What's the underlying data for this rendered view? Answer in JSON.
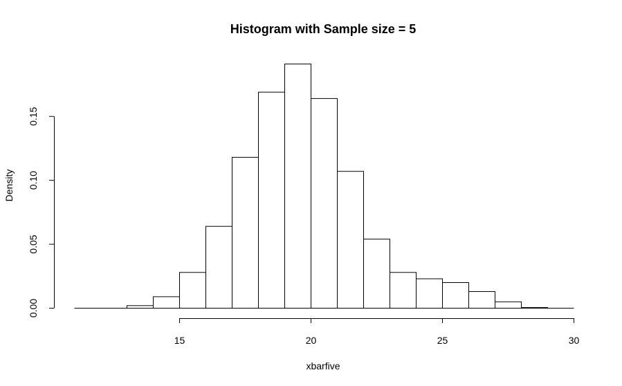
{
  "chart_data": {
    "type": "bar",
    "title": "Histogram with Sample size = 5",
    "xlabel": "xbarfive",
    "ylabel": "Density",
    "bins": [
      {
        "x0": 11,
        "x1": 12,
        "value": 0.0
      },
      {
        "x0": 12,
        "x1": 13,
        "value": 0.0
      },
      {
        "x0": 13,
        "x1": 14,
        "value": 0.002
      },
      {
        "x0": 14,
        "x1": 15,
        "value": 0.009
      },
      {
        "x0": 15,
        "x1": 16,
        "value": 0.028
      },
      {
        "x0": 16,
        "x1": 17,
        "value": 0.064
      },
      {
        "x0": 17,
        "x1": 18,
        "value": 0.118
      },
      {
        "x0": 18,
        "x1": 19,
        "value": 0.169
      },
      {
        "x0": 19,
        "x1": 20,
        "value": 0.191
      },
      {
        "x0": 20,
        "x1": 21,
        "value": 0.164
      },
      {
        "x0": 21,
        "x1": 22,
        "value": 0.107
      },
      {
        "x0": 22,
        "x1": 23,
        "value": 0.054
      },
      {
        "x0": 23,
        "x1": 24,
        "value": 0.028
      },
      {
        "x0": 24,
        "x1": 25,
        "value": 0.023
      },
      {
        "x0": 25,
        "x1": 26,
        "value": 0.02
      },
      {
        "x0": 26,
        "x1": 27,
        "value": 0.013
      },
      {
        "x0": 27,
        "x1": 28,
        "value": 0.005
      },
      {
        "x0": 28,
        "x1": 29,
        "value": 0.0005
      },
      {
        "x0": 29,
        "x1": 30,
        "value": 0.0
      }
    ],
    "xlim": [
      11,
      30
    ],
    "ylim": [
      0,
      0.191
    ],
    "x_ticks": [
      15,
      20,
      25,
      30
    ],
    "x_tick_labels": [
      "15",
      "20",
      "25",
      "30"
    ],
    "y_ticks": [
      0,
      0.05,
      0.1,
      0.15
    ],
    "y_tick_labels": [
      "0.00",
      "0.05",
      "0.10",
      "0.15"
    ],
    "grid": false,
    "legend": false
  }
}
